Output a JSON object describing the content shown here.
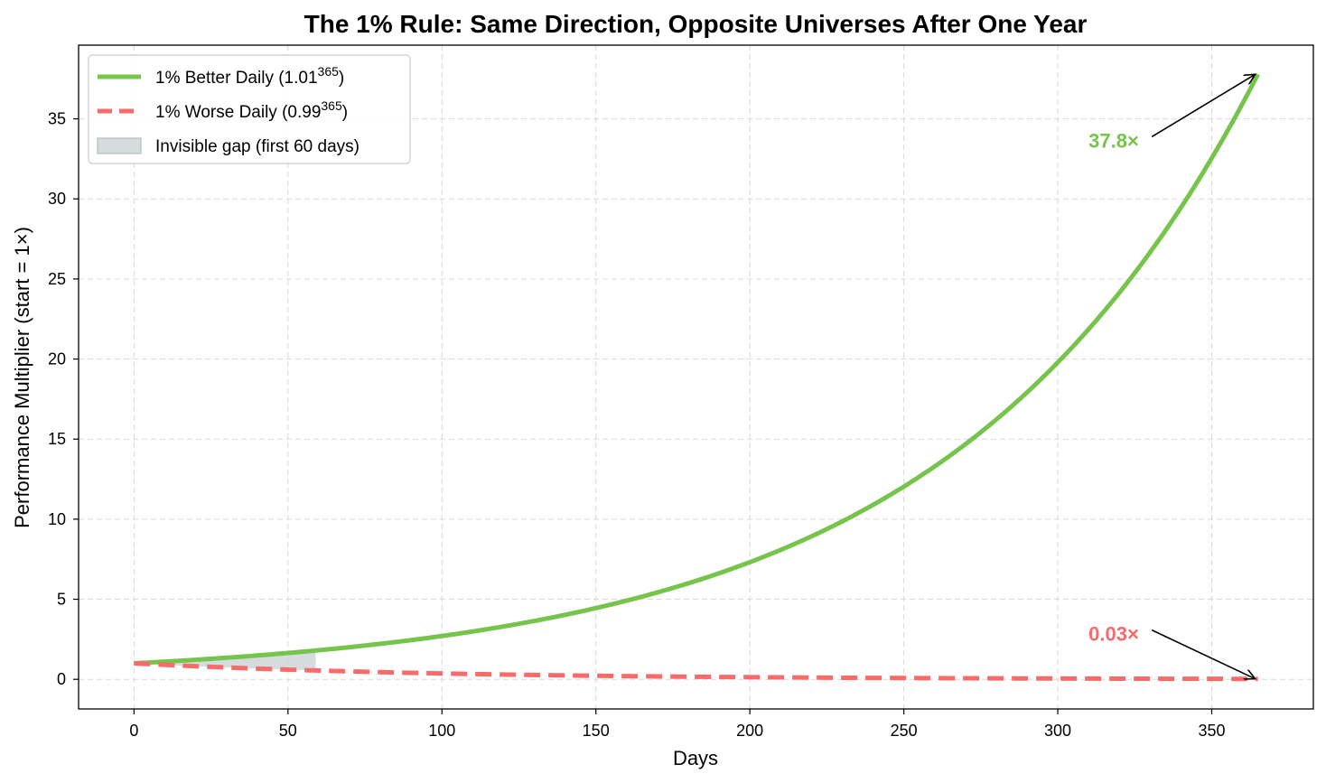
{
  "chart_data": {
    "type": "line",
    "title": "The 1% Rule: Same Direction, Opposite Universes After One Year",
    "xlabel": "Days",
    "ylabel": "Performance Multiplier (start = 1×)",
    "xlim": [
      -18,
      383
    ],
    "ylim": [
      -1.85,
      39.6
    ],
    "xticks": [
      0,
      50,
      100,
      150,
      200,
      250,
      300,
      350
    ],
    "yticks": [
      0,
      5,
      10,
      15,
      20,
      25,
      30,
      35
    ],
    "grid": true,
    "legend_position": "top-left",
    "x_range": [
      0,
      365
    ],
    "series": [
      {
        "key": "better",
        "name": "1% Better Daily (1.01",
        "name_sup": "365",
        "name_suffix": ")",
        "formula": "1.01^day",
        "base": 1.01,
        "color": "#77c44d",
        "dash": "solid"
      },
      {
        "key": "worse",
        "name": "1% Worse Daily (0.99",
        "name_sup": "365",
        "name_suffix": ")",
        "formula": "0.99^day",
        "base": 0.99,
        "color": "#f76b6b",
        "dash": "dashed"
      }
    ],
    "shaded_region": {
      "label": "Invisible gap (first 60 days)",
      "x_start": 0,
      "x_end": 59,
      "color": "#c8d0d2"
    },
    "annotations": [
      {
        "text": "37.8×",
        "series": "better",
        "point": [
          365,
          37.78
        ],
        "text_at": [
          310,
          33.2
        ],
        "color": "#77c44d"
      },
      {
        "text": "0.03×",
        "series": "worse",
        "point": [
          365,
          0.03
        ],
        "text_at": [
          310,
          2.4
        ],
        "color": "#f76b6b"
      }
    ]
  }
}
